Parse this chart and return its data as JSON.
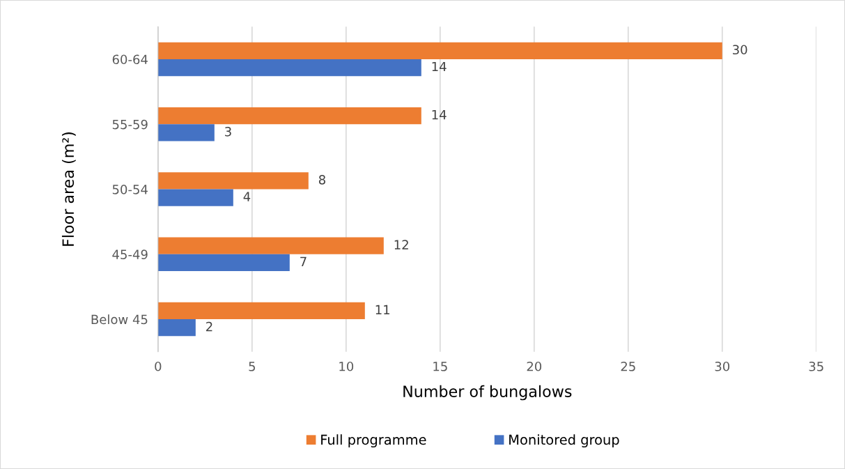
{
  "chart_data": {
    "type": "bar",
    "orientation": "horizontal",
    "categories": [
      "60-64",
      "55-59",
      "50-54",
      "45-49",
      "Below 45"
    ],
    "series": [
      {
        "name": "Full programme",
        "color": "#ed7d31",
        "values": [
          30,
          14,
          8,
          12,
          11
        ]
      },
      {
        "name": "Monitored group",
        "color": "#4472c4",
        "values": [
          14,
          3,
          4,
          7,
          2
        ]
      }
    ],
    "xlabel": "Number of bungalows",
    "ylabel": "Floor area (m²)",
    "xlim": [
      0,
      35
    ],
    "xticks": [
      0,
      5,
      10,
      15,
      20,
      25,
      30,
      35
    ],
    "grid": "x",
    "legend": "bottom",
    "data_labels": true
  }
}
